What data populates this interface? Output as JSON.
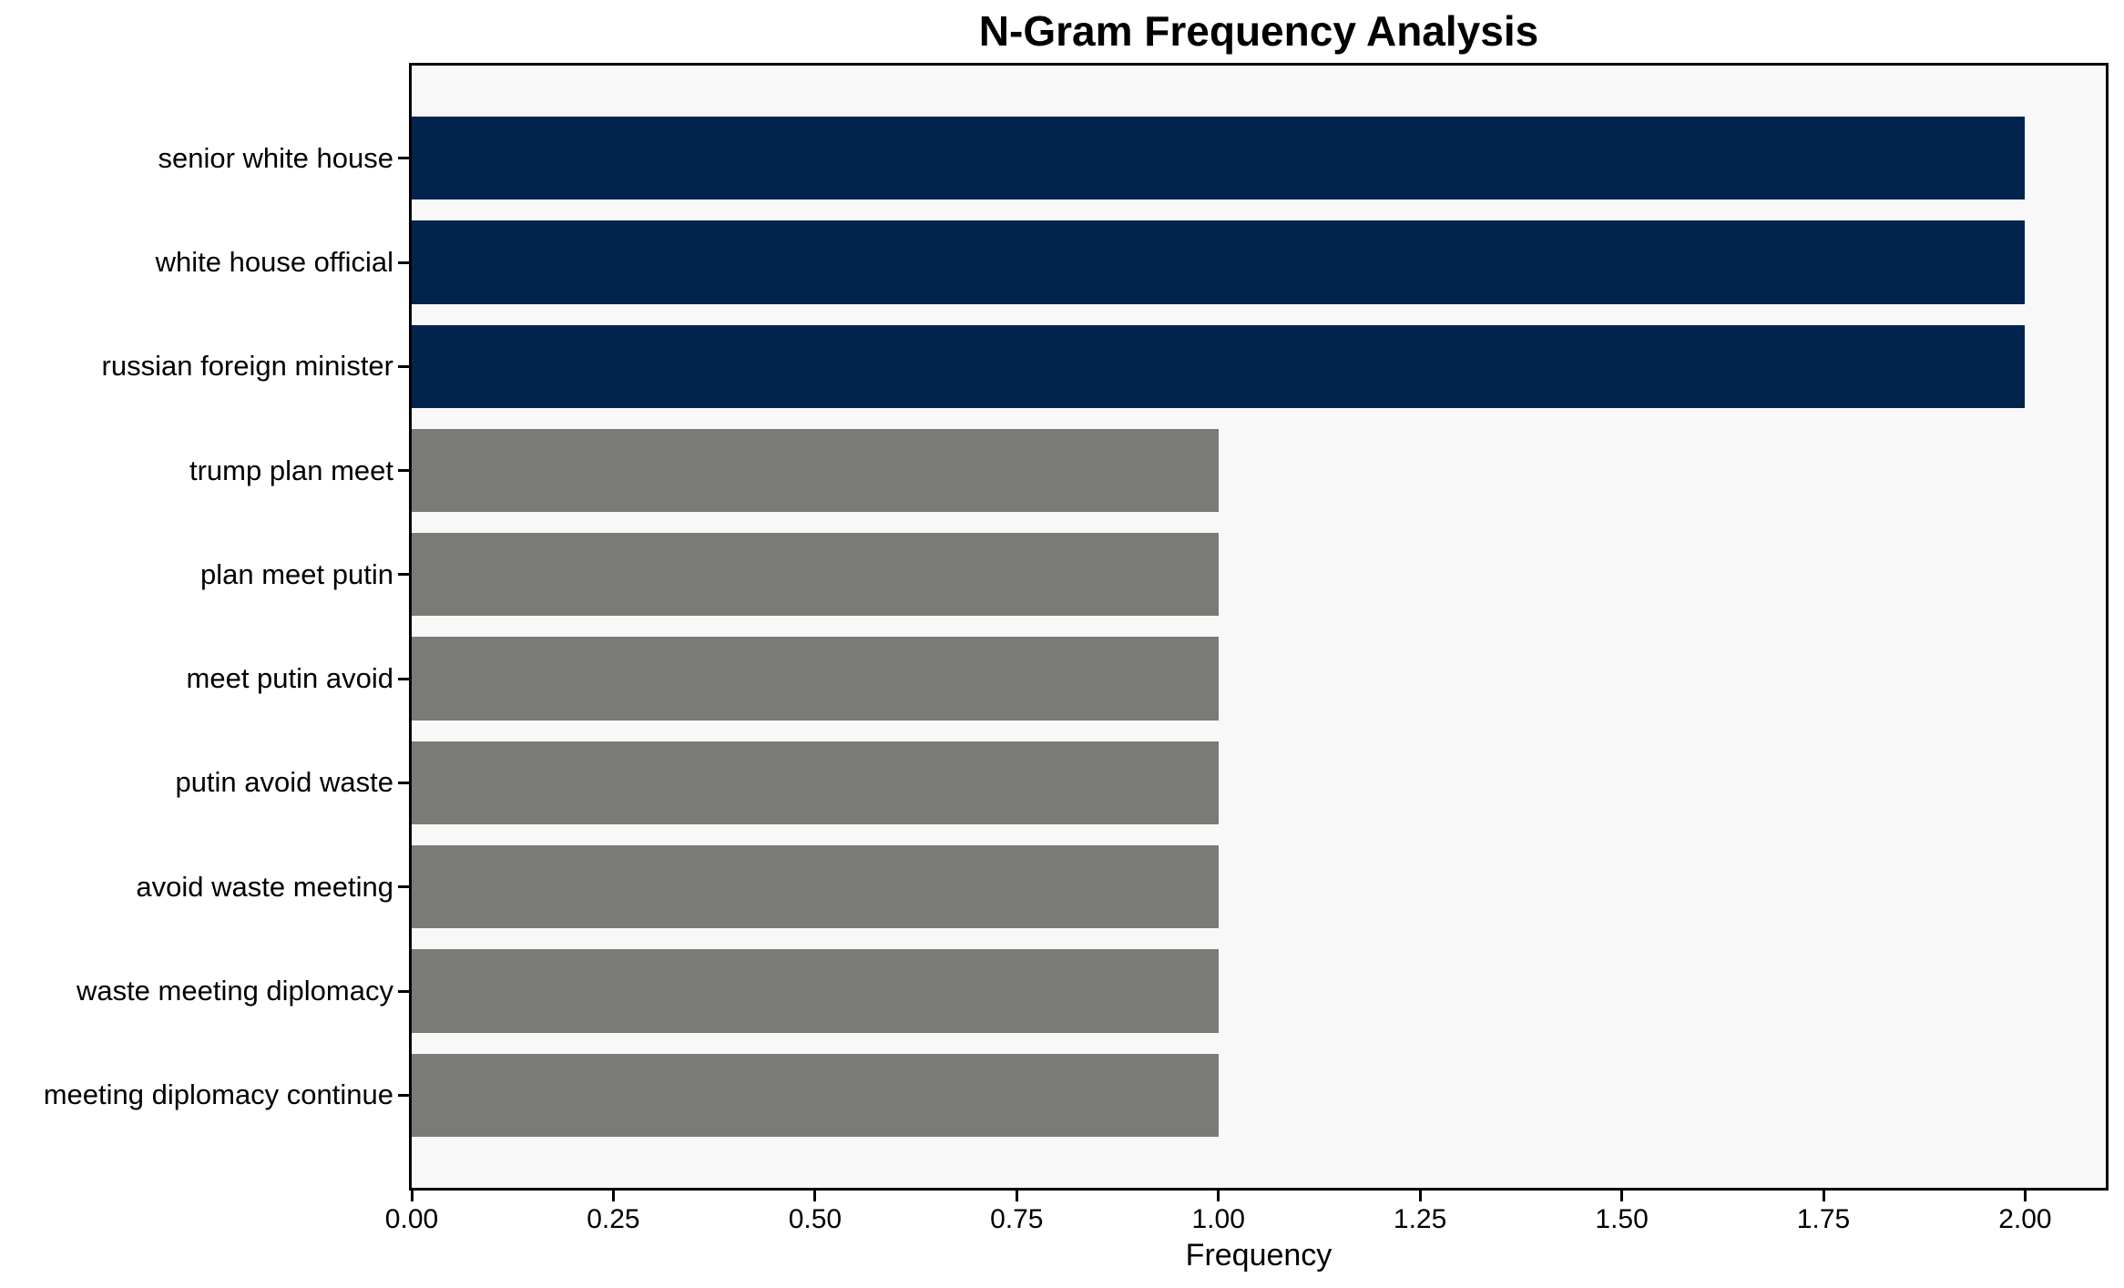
{
  "chart_data": {
    "type": "bar",
    "orientation": "horizontal",
    "title": "N-Gram Frequency Analysis",
    "xlabel": "Frequency",
    "ylabel": "",
    "categories": [
      "senior white house",
      "white house official",
      "russian foreign minister",
      "trump plan meet",
      "plan meet putin",
      "meet putin avoid",
      "putin avoid waste",
      "avoid waste meeting",
      "waste meeting diplomacy",
      "meeting diplomacy continue"
    ],
    "values": [
      2,
      2,
      2,
      1,
      1,
      1,
      1,
      1,
      1,
      1
    ],
    "bar_colors": [
      "#02234d",
      "#02234d",
      "#02234d",
      "#7a7a77",
      "#7a7a77",
      "#7a7a77",
      "#7a7a77",
      "#7a7a77",
      "#7a7a77",
      "#7a7a77"
    ],
    "xlim": [
      0,
      2.1
    ],
    "x_tick_values": [
      0,
      0.25,
      0.5,
      0.75,
      1.0,
      1.25,
      1.5,
      1.75,
      2.0
    ],
    "x_tick_labels": [
      "0.00",
      "0.25",
      "0.50",
      "0.75",
      "1.00",
      "1.25",
      "1.50",
      "1.75",
      "2.00"
    ],
    "grid": false,
    "legend": null,
    "colors": {
      "highlight_bar": "#02234d",
      "default_bar": "#7a7a77",
      "plot_background": "#f8f8f8",
      "figure_background": "#ffffff",
      "spine": "#000000",
      "text": "#000000"
    }
  }
}
